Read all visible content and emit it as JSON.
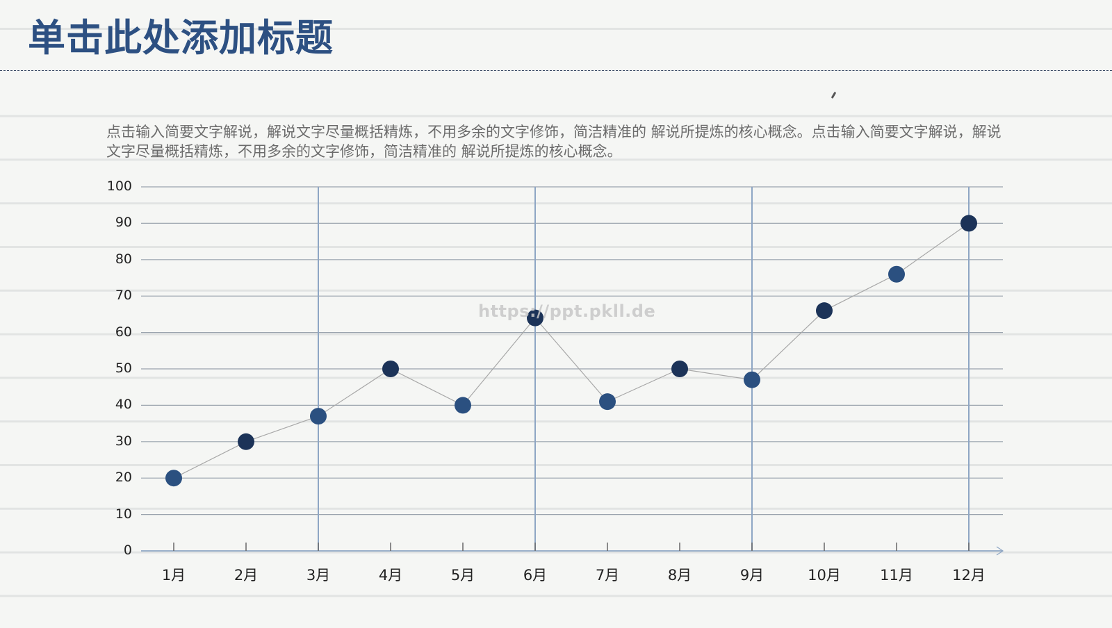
{
  "slide": {
    "title": "单击此处添加标题",
    "description": "点击输入简要文字解说，解说文字尽量概括精炼，不用多余的文字修饰，简洁精准的 解说所提炼的核心概念。点击输入简要文字解说，解说文字尽量概括精炼，不用多余的文字修饰，简洁精准的 解说所提炼的核心概念。",
    "watermark": "https://ppt.pkll.de"
  },
  "colors": {
    "title": "#2d5082",
    "grid": "#9aa3ad",
    "highlight_vertical": "#8ea6c4",
    "line": "#a8a8a8",
    "marker_light": "#2b5080",
    "marker_dark": "#1c3358",
    "background": "#f5f6f4",
    "paper_line": "#e2e4e3"
  },
  "chart_data": {
    "type": "line",
    "title": "",
    "xlabel": "",
    "ylabel": "",
    "categories": [
      "1月",
      "2月",
      "3月",
      "4月",
      "5月",
      "6月",
      "7月",
      "8月",
      "9月",
      "10月",
      "11月",
      "12月"
    ],
    "values": [
      20,
      30,
      37,
      50,
      40,
      64,
      41,
      50,
      47,
      66,
      76,
      90
    ],
    "series": [
      {
        "name": "",
        "values": [
          20,
          30,
          37,
          50,
          40,
          64,
          41,
          50,
          47,
          66,
          76,
          90
        ]
      }
    ],
    "ylim": [
      0,
      100
    ],
    "yticks": [
      "0",
      "10",
      "20",
      "30",
      "40",
      "50",
      "60",
      "70",
      "80",
      "90",
      "100"
    ],
    "grid": true,
    "vertical_gridlines_at": [
      "3月",
      "6月",
      "9月",
      "12月"
    ],
    "legend": "none",
    "markers": "filled-circle"
  }
}
